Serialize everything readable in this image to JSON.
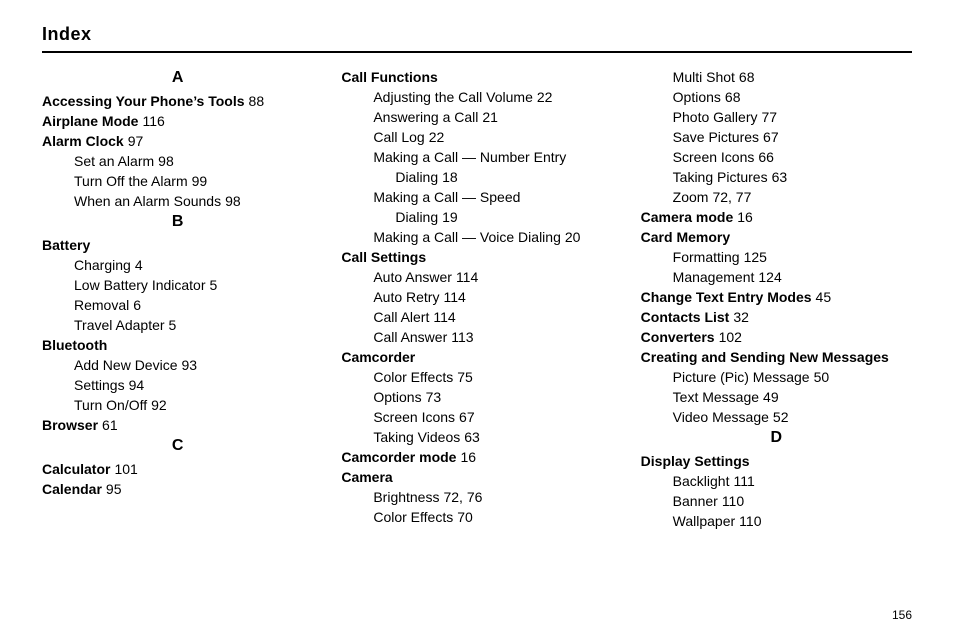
{
  "heading": "Index",
  "page_number": "156",
  "columns": [
    [
      {
        "kind": "letter",
        "text": "A"
      },
      {
        "kind": "entry",
        "indent": 0,
        "bold": true,
        "term": "Accessing Your Phone’s Tools",
        "page": "88"
      },
      {
        "kind": "entry",
        "indent": 0,
        "bold": true,
        "term": "Airplane Mode",
        "page": "116"
      },
      {
        "kind": "entry",
        "indent": 0,
        "bold": true,
        "term": "Alarm Clock",
        "page": "97"
      },
      {
        "kind": "entry",
        "indent": 1,
        "bold": false,
        "term": "Set an Alarm",
        "page": "98"
      },
      {
        "kind": "entry",
        "indent": 1,
        "bold": false,
        "term": "Turn Off the Alarm",
        "page": "99"
      },
      {
        "kind": "entry",
        "indent": 1,
        "bold": false,
        "term": "When an Alarm Sounds",
        "page": "98"
      },
      {
        "kind": "letter",
        "text": "B"
      },
      {
        "kind": "entry",
        "indent": 0,
        "bold": true,
        "term": "Battery",
        "page": ""
      },
      {
        "kind": "entry",
        "indent": 1,
        "bold": false,
        "term": "Charging",
        "page": "4"
      },
      {
        "kind": "entry",
        "indent": 1,
        "bold": false,
        "term": "Low Battery Indicator",
        "page": "5"
      },
      {
        "kind": "entry",
        "indent": 1,
        "bold": false,
        "term": "Removal",
        "page": "6"
      },
      {
        "kind": "entry",
        "indent": 1,
        "bold": false,
        "term": "Travel Adapter",
        "page": "5"
      },
      {
        "kind": "entry",
        "indent": 0,
        "bold": true,
        "term": "Bluetooth",
        "page": ""
      },
      {
        "kind": "entry",
        "indent": 1,
        "bold": false,
        "term": "Add New Device",
        "page": "93"
      },
      {
        "kind": "entry",
        "indent": 1,
        "bold": false,
        "term": "Settings",
        "page": "94"
      },
      {
        "kind": "entry",
        "indent": 1,
        "bold": false,
        "term": "Turn On/Off",
        "page": "92"
      },
      {
        "kind": "entry",
        "indent": 0,
        "bold": true,
        "term": "Browser",
        "page": "61"
      },
      {
        "kind": "letter",
        "text": "C"
      },
      {
        "kind": "entry",
        "indent": 0,
        "bold": true,
        "term": "Calculator",
        "page": "101"
      },
      {
        "kind": "entry",
        "indent": 0,
        "bold": true,
        "term": "Calendar",
        "page": "95"
      }
    ],
    [
      {
        "kind": "entry",
        "indent": 0,
        "bold": true,
        "term": "Call Functions",
        "page": ""
      },
      {
        "kind": "entry",
        "indent": 1,
        "bold": false,
        "term": "Adjusting the Call Volume",
        "page": "22"
      },
      {
        "kind": "entry",
        "indent": 1,
        "bold": false,
        "term": "Answering a Call",
        "page": "21"
      },
      {
        "kind": "entry",
        "indent": 1,
        "bold": false,
        "term": "Call Log",
        "page": "22"
      },
      {
        "kind": "entry",
        "indent": 1,
        "bold": false,
        "term": "Making a Call — Number Entry",
        "page": ""
      },
      {
        "kind": "entry",
        "indent": 2,
        "bold": false,
        "term": "Dialing",
        "page": "18"
      },
      {
        "kind": "entry",
        "indent": 1,
        "bold": false,
        "term": "Making a Call — Speed",
        "page": ""
      },
      {
        "kind": "entry",
        "indent": 2,
        "bold": false,
        "term": "Dialing",
        "page": "19"
      },
      {
        "kind": "entry",
        "indent": 1,
        "bold": false,
        "term": "Making a Call — Voice Dialing",
        "page": "20"
      },
      {
        "kind": "entry",
        "indent": 0,
        "bold": true,
        "term": "Call Settings",
        "page": ""
      },
      {
        "kind": "entry",
        "indent": 1,
        "bold": false,
        "term": "Auto Answer",
        "page": "114"
      },
      {
        "kind": "entry",
        "indent": 1,
        "bold": false,
        "term": "Auto Retry",
        "page": "114"
      },
      {
        "kind": "entry",
        "indent": 1,
        "bold": false,
        "term": "Call Alert",
        "page": "114"
      },
      {
        "kind": "entry",
        "indent": 1,
        "bold": false,
        "term": "Call Answer",
        "page": "113"
      },
      {
        "kind": "entry",
        "indent": 0,
        "bold": true,
        "term": "Camcorder",
        "page": ""
      },
      {
        "kind": "entry",
        "indent": 1,
        "bold": false,
        "term": "Color Effects",
        "page": "75"
      },
      {
        "kind": "entry",
        "indent": 1,
        "bold": false,
        "term": "Options",
        "page": "73"
      },
      {
        "kind": "entry",
        "indent": 1,
        "bold": false,
        "term": "Screen Icons",
        "page": "67"
      },
      {
        "kind": "entry",
        "indent": 1,
        "bold": false,
        "term": "Taking Videos",
        "page": "63"
      },
      {
        "kind": "entry",
        "indent": 0,
        "bold": true,
        "term": "Camcorder mode",
        "page": "16"
      },
      {
        "kind": "entry",
        "indent": 0,
        "bold": true,
        "term": "Camera",
        "page": ""
      },
      {
        "kind": "entry",
        "indent": 1,
        "bold": false,
        "term": "Brightness",
        "page": "72, 76"
      },
      {
        "kind": "entry",
        "indent": 1,
        "bold": false,
        "term": "Color Effects",
        "page": "70"
      }
    ],
    [
      {
        "kind": "entry",
        "indent": 1,
        "bold": false,
        "term": "Multi Shot",
        "page": "68"
      },
      {
        "kind": "entry",
        "indent": 1,
        "bold": false,
        "term": "Options",
        "page": "68"
      },
      {
        "kind": "entry",
        "indent": 1,
        "bold": false,
        "term": "Photo Gallery",
        "page": "77"
      },
      {
        "kind": "entry",
        "indent": 1,
        "bold": false,
        "term": "Save Pictures",
        "page": "67"
      },
      {
        "kind": "entry",
        "indent": 1,
        "bold": false,
        "term": "Screen Icons",
        "page": "66"
      },
      {
        "kind": "entry",
        "indent": 1,
        "bold": false,
        "term": "Taking Pictures",
        "page": "63"
      },
      {
        "kind": "entry",
        "indent": 1,
        "bold": false,
        "term": "Zoom",
        "page": "72, 77"
      },
      {
        "kind": "entry",
        "indent": 0,
        "bold": true,
        "term": "Camera mode",
        "page": "16"
      },
      {
        "kind": "entry",
        "indent": 0,
        "bold": true,
        "term": "Card Memory",
        "page": ""
      },
      {
        "kind": "entry",
        "indent": 1,
        "bold": false,
        "term": "Formatting",
        "page": "125"
      },
      {
        "kind": "entry",
        "indent": 1,
        "bold": false,
        "term": "Management",
        "page": "124"
      },
      {
        "kind": "entry",
        "indent": 0,
        "bold": true,
        "term": "Change Text Entry Modes",
        "page": "45"
      },
      {
        "kind": "entry",
        "indent": 0,
        "bold": true,
        "term": "Contacts List",
        "page": "32"
      },
      {
        "kind": "entry",
        "indent": 0,
        "bold": true,
        "term": "Converters",
        "page": "102"
      },
      {
        "kind": "entry",
        "indent": 0,
        "bold": true,
        "term": "Creating and Sending New Messages",
        "page": ""
      },
      {
        "kind": "entry",
        "indent": 1,
        "bold": false,
        "term": "Picture (Pic) Message",
        "page": "50"
      },
      {
        "kind": "entry",
        "indent": 1,
        "bold": false,
        "term": "Text Message",
        "page": "49"
      },
      {
        "kind": "entry",
        "indent": 1,
        "bold": false,
        "term": "Video Message",
        "page": "52"
      },
      {
        "kind": "letter",
        "text": "D"
      },
      {
        "kind": "entry",
        "indent": 0,
        "bold": true,
        "term": "Display Settings",
        "page": ""
      },
      {
        "kind": "entry",
        "indent": 1,
        "bold": false,
        "term": "Backlight",
        "page": "111"
      },
      {
        "kind": "entry",
        "indent": 1,
        "bold": false,
        "term": "Banner",
        "page": "110"
      },
      {
        "kind": "entry",
        "indent": 1,
        "bold": false,
        "term": "Wallpaper",
        "page": "110"
      }
    ]
  ]
}
